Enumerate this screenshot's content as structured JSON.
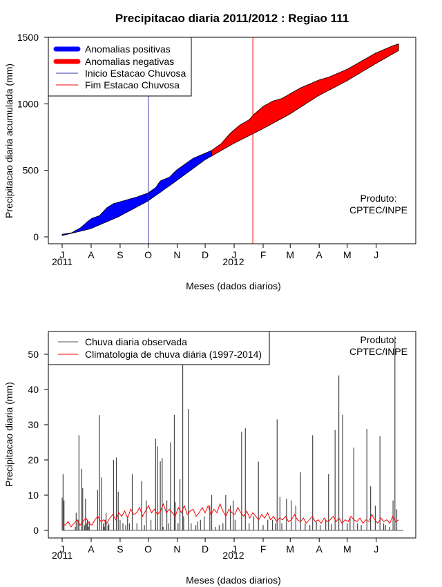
{
  "charts": [
    {
      "type": "area",
      "title": "Precipitacao diaria 2011/2012 : Regiao 111",
      "ylabel": "Precipitacao diaria acumulada (mm)",
      "xlabel": "Meses (dados diarios)",
      "ylim": [
        0,
        1500
      ],
      "yticks": [
        0,
        500,
        1000,
        1500
      ],
      "month_labels": [
        "J",
        "A",
        "S",
        "O",
        "N",
        "D",
        "J",
        "F",
        "M",
        "A",
        "M",
        "J"
      ],
      "year_labels": [
        "2011",
        "2012"
      ],
      "legend": [
        {
          "label": "Anomalias positivas",
          "color": "#0000ff",
          "style": "thick"
        },
        {
          "label": "Anomalias negativas",
          "color": "#ff0000",
          "style": "thick"
        },
        {
          "label": "Inicio Estacao Chuvosa",
          "color": "#3333aa",
          "style": "thin"
        },
        {
          "label": "Fim Estacao Chuvosa",
          "color": "#ff0000",
          "style": "thin"
        }
      ],
      "credit": [
        "Produto:",
        "CPTEC/INPE"
      ],
      "start_season_day": 92,
      "end_season_day": 204,
      "crossover_day": 160,
      "day_range": [
        0,
        365
      ],
      "climatology_cumulative": {
        "days": [
          0,
          30,
          60,
          92,
          122,
          153,
          183,
          214,
          243,
          274,
          304,
          335,
          360
        ],
        "values": [
          10,
          60,
          150,
          270,
          420,
          580,
          700,
          810,
          920,
          1060,
          1170,
          1300,
          1400
        ]
      },
      "observed_cumulative": {
        "days": [
          0,
          10,
          20,
          28,
          32,
          40,
          48,
          55,
          60,
          70,
          80,
          92,
          100,
          105,
          115,
          122,
          130,
          140,
          150,
          160,
          170,
          180,
          190,
          200,
          205,
          215,
          225,
          235,
          245,
          255,
          265,
          275,
          285,
          295,
          305,
          315,
          325,
          335,
          345,
          355,
          360
        ],
        "values": [
          20,
          30,
          70,
          120,
          140,
          160,
          220,
          250,
          260,
          280,
          300,
          330,
          370,
          420,
          450,
          500,
          540,
          590,
          620,
          650,
          700,
          780,
          840,
          880,
          920,
          980,
          1020,
          1040,
          1080,
          1120,
          1150,
          1180,
          1200,
          1230,
          1260,
          1300,
          1340,
          1380,
          1410,
          1440,
          1450
        ]
      },
      "series": [
        {
          "name": "Anomalias positivas",
          "color": "#0000ff"
        },
        {
          "name": "Anomalias negativas",
          "color": "#ff0000"
        }
      ]
    },
    {
      "type": "bar",
      "ylabel": "Precipitacao diaria (mm)",
      "xlabel": "Meses (dados diarios)",
      "ylim": [
        0,
        55
      ],
      "yticks": [
        0,
        10,
        20,
        30,
        40,
        50
      ],
      "month_labels": [
        "J",
        "A",
        "S",
        "O",
        "N",
        "D",
        "J",
        "F",
        "M",
        "A",
        "M",
        "J"
      ],
      "year_labels": [
        "2011",
        "2012"
      ],
      "legend": [
        {
          "label": "Chuva diaria observada",
          "color": "#555555"
        },
        {
          "label": "Climatologia de chuva diária (1997-2014)",
          "color": "#ff0000"
        }
      ],
      "credit": [
        "Produto:",
        "CPTEC/INPE"
      ],
      "day_range": [
        0,
        365
      ],
      "daily_rain_days": [
        0,
        1,
        2,
        14,
        15,
        17,
        18,
        21,
        22,
        24,
        25,
        26,
        27,
        28,
        29,
        38,
        40,
        42,
        44,
        45,
        46,
        47,
        49,
        50,
        55,
        58,
        60,
        62,
        65,
        68,
        70,
        72,
        75,
        80,
        85,
        88,
        90,
        95,
        100,
        102,
        105,
        107,
        108,
        112,
        114,
        116,
        120,
        121,
        124,
        126,
        129,
        130,
        135,
        138,
        143,
        145,
        148,
        152,
        158,
        160,
        164,
        168,
        172,
        175,
        180,
        183,
        185,
        192,
        196,
        200,
        205,
        210,
        215,
        220,
        225,
        228,
        230,
        233,
        235,
        240,
        245,
        250,
        255,
        260,
        265,
        268,
        272,
        276,
        282,
        285,
        288,
        292,
        296,
        300,
        305,
        308,
        312,
        316,
        320,
        326,
        330,
        335,
        340,
        344,
        346,
        350,
        354,
        356,
        358
      ],
      "daily_rain_values": [
        9.3,
        16,
        8.5,
        1,
        5,
        3,
        27,
        17.5,
        12,
        1.5,
        9,
        2,
        3,
        1,
        2.5,
        11.5,
        32.7,
        15,
        2,
        1,
        3,
        5,
        1.5,
        2,
        20,
        20.7,
        11,
        3,
        2,
        1.5,
        4,
        2,
        16,
        2,
        14,
        1.5,
        8.5,
        3,
        26,
        23.8,
        19.6,
        20.5,
        1,
        8.5,
        2,
        25,
        32.8,
        8,
        2,
        14.5,
        47,
        4,
        34.5,
        2,
        1.5,
        2.5,
        3,
        4,
        7,
        10,
        1,
        1.5,
        2,
        10,
        7,
        8.5,
        3,
        28,
        29,
        2,
        4,
        19.5,
        1.5,
        3,
        3,
        2,
        31.5,
        9.5,
        2,
        9,
        8.5,
        7,
        16.5,
        2,
        1.5,
        27,
        2.5,
        1.5,
        3,
        16,
        1.8,
        28.5,
        44,
        32.8,
        2,
        3.5,
        23.5,
        2,
        1.5,
        28.8,
        12.5,
        7,
        26.8,
        2,
        1.5,
        1,
        8.5,
        55,
        6
      ],
      "climatology_daily": [
        2,
        1.5,
        2.5,
        1,
        2,
        3,
        1.5,
        2.5,
        3.5,
        2,
        1.5,
        3,
        4,
        2.5,
        3,
        2,
        3.5,
        4.5,
        3,
        5,
        4,
        5.5,
        3.5,
        6,
        4.5,
        5,
        6.5,
        4,
        5.5,
        7,
        5,
        6,
        4.5,
        5.5,
        7.5,
        5,
        6,
        5,
        4,
        6.5,
        5,
        7,
        4.5,
        5.5,
        6,
        4,
        5,
        6.5,
        5,
        7,
        4.5,
        6,
        5,
        7.5,
        5.5,
        4,
        6,
        5,
        4.5,
        6.5,
        5,
        4,
        5.5,
        3.5,
        5,
        4,
        3,
        4.5,
        3.5,
        5,
        3,
        4,
        2.5,
        3.5,
        3,
        4,
        2.5,
        3,
        4.5,
        3,
        2.5,
        3.5,
        2,
        3,
        4,
        2.5,
        3,
        2,
        3.5,
        2.5,
        3,
        4,
        2.5,
        3.5,
        2,
        3,
        2.5,
        4,
        3,
        2.5,
        3.5,
        2,
        3,
        2.5,
        4.5,
        3,
        2,
        3.5,
        2.5,
        3,
        2,
        4,
        2.5,
        3
      ]
    }
  ]
}
